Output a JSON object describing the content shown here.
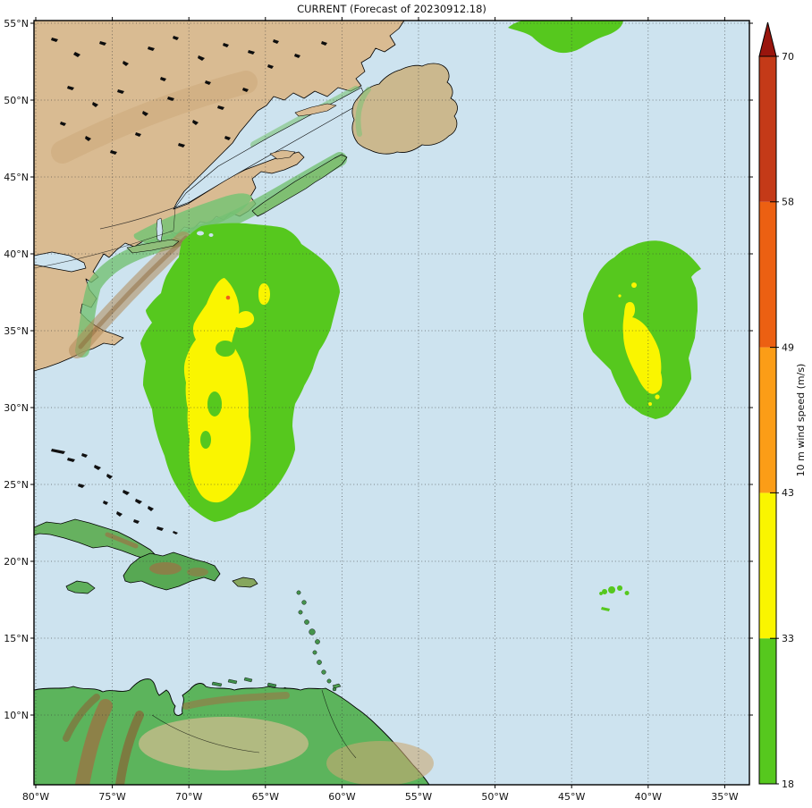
{
  "title": "CURRENT (Forecast of 20230912.18)",
  "axes": {
    "lon_tick_labels": [
      "80°W",
      "75°W",
      "70°W",
      "65°W",
      "60°W",
      "55°W",
      "50°W",
      "45°W",
      "40°W",
      "35°W"
    ],
    "lat_tick_labels": [
      "55°N",
      "50°N",
      "45°N",
      "40°N",
      "35°N",
      "30°N",
      "25°N",
      "20°N",
      "15°N",
      "10°N"
    ]
  },
  "colorbar": {
    "label": "10 m wind speed (m/s)",
    "tick_labels": [
      "18",
      "33",
      "43",
      "49",
      "58",
      "70"
    ],
    "segments": [
      {
        "range": "18-33",
        "color": "#56C81E"
      },
      {
        "range": "33-43",
        "color": "#FAF500"
      },
      {
        "range": "43-49",
        "color": "#FB9D17"
      },
      {
        "range": "49-58",
        "color": "#EC6012"
      },
      {
        "range": "58-70",
        "color": "#C43A18"
      }
    ],
    "over_color": "#99150D"
  },
  "map": {
    "ocean_color": "#CDE3EF",
    "swath_green": "#56C81E",
    "swath_yellow": "#FAF500",
    "swath_orange_spot": "#F25C1C"
  },
  "chart_data": {
    "type": "map",
    "title": "CURRENT (Forecast of 20230912.18)",
    "colorbar_label": "10 m wind speed (m/s)",
    "colorbar_tick_values": [
      18,
      33,
      43,
      49,
      58,
      70
    ],
    "lon_ticks_deg_w": [
      80,
      75,
      70,
      65,
      60,
      55,
      50,
      45,
      40,
      35
    ],
    "lat_ticks_deg_n": [
      55,
      50,
      45,
      40,
      35,
      30,
      25,
      20,
      15,
      10
    ],
    "wind_swaths": [
      {
        "name": "primary swath",
        "approx_extent": "72W-59W, 24N-41N",
        "levels": "green 18-33 m/s with large yellow 33-43 m/s core and tiny >43 m/s spot"
      },
      {
        "name": "secondary swath",
        "approx_extent": "44W-36W, 27N-41N",
        "levels": "green 18-33 m/s with small yellow 33-43 m/s core"
      },
      {
        "name": "northern edge blob",
        "approx_extent": "48W-41W at top edge ~55N",
        "levels": "green 18-33 m/s"
      },
      {
        "name": "small specks",
        "approx_extent": "near 41W, 18N",
        "levels": "green 18-33 m/s"
      }
    ]
  }
}
